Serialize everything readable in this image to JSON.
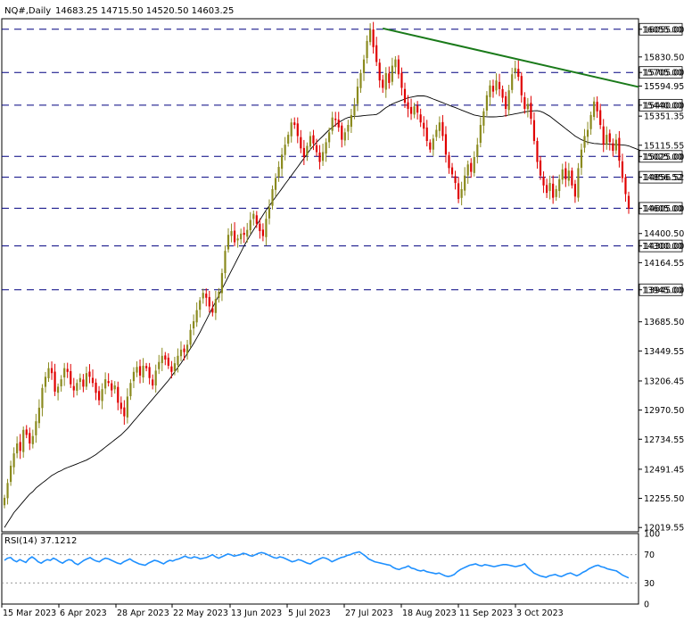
{
  "header": {
    "symbol": "NQ#,Daily",
    "ohlc": "14683.25 14715.50 14520.50 14603.25"
  },
  "rsi": {
    "label": "RSI(14) 37.1212",
    "levels": [
      "100",
      "70",
      "30",
      "0"
    ]
  },
  "colors": {
    "bull": "#8a8a1e",
    "bear": "#e00000",
    "trendline": "#1a7a1a",
    "ma": "#000000",
    "level_line": "#000080",
    "rsi_line": "#1e90ff"
  },
  "chart_data": {
    "type": "candlestick",
    "y_ticks": [
      "16055.00",
      "15830.50",
      "15705.00",
      "15594.95",
      "15440.00",
      "15351.35",
      "15115.55",
      "15025.00",
      "14856.52",
      "14605.00",
      "14400.50",
      "14300.00",
      "14164.55",
      "13945.00",
      "13685.50",
      "13449.55",
      "13206.45",
      "12970.50",
      "12734.55",
      "12491.45",
      "12255.50",
      "12019.55"
    ],
    "x_ticks": [
      "15 Mar 2023",
      "6 Apr 2023",
      "28 Apr 2023",
      "22 May 2023",
      "13 Jun 2023",
      "5 Jul 2023",
      "27 Jul 2023",
      "18 Aug 2023",
      "11 Sep 2023",
      "3 Oct 2023"
    ],
    "levels": [
      16055.0,
      15705.0,
      15440.0,
      15025.0,
      14856.52,
      14605.0,
      14300.0,
      13945.0
    ],
    "level_labels": [
      "16055.00",
      "15705.00",
      "15440.00",
      "15025.00",
      "14856.52",
      "14605.00",
      "14300.00",
      "13945.00"
    ],
    "trendline": {
      "from": {
        "i": 120,
        "price": 16062
      },
      "to": {
        "i": 240,
        "price": 15360
      }
    },
    "closes": [
      12260,
      12380,
      12520,
      12620,
      12700,
      12640,
      12810,
      12770,
      12700,
      12760,
      12880,
      12990,
      13150,
      13240,
      13310,
      13270,
      13120,
      13160,
      13220,
      13310,
      13280,
      13180,
      13130,
      13190,
      13230,
      13160,
      13270,
      13240,
      13190,
      13110,
      13050,
      13140,
      13220,
      13190,
      13130,
      13170,
      13030,
      12980,
      12920,
      13080,
      13190,
      13280,
      13320,
      13250,
      13330,
      13310,
      13230,
      13170,
      13290,
      13360,
      13410,
      13380,
      13330,
      13280,
      13350,
      13410,
      13460,
      13440,
      13500,
      13620,
      13690,
      13780,
      13860,
      13920,
      13880,
      13810,
      13760,
      13870,
      13930,
      14080,
      14260,
      14390,
      14420,
      14330,
      14360,
      14400,
      14390,
      14430,
      14510,
      14560,
      14480,
      14420,
      14380,
      14520,
      14610,
      14760,
      14850,
      14940,
      15040,
      15120,
      15200,
      15300,
      15280,
      15190,
      15090,
      15020,
      15110,
      15190,
      15130,
      15060,
      14980,
      15060,
      15140,
      15220,
      15340,
      15320,
      15260,
      15160,
      15220,
      15280,
      15360,
      15440,
      15590,
      15700,
      15810,
      15960,
      16050,
      15910,
      15790,
      15640,
      15580,
      15700,
      15620,
      15760,
      15810,
      15690,
      15580,
      15460,
      15410,
      15370,
      15430,
      15380,
      15300,
      15250,
      15150,
      15080,
      15170,
      15240,
      15300,
      15190,
      15040,
      14930,
      14880,
      14810,
      14680,
      14760,
      14870,
      14960,
      14900,
      15020,
      15120,
      15280,
      15390,
      15520,
      15600,
      15550,
      15640,
      15570,
      15500,
      15410,
      15560,
      15690,
      15740,
      15670,
      15520,
      15410,
      15450,
      15330,
      15150,
      14980,
      14870,
      14790,
      14730,
      14810,
      14690,
      14760,
      14840,
      14920,
      14840,
      14910,
      14790,
      14700,
      14930,
      15080,
      15190,
      15240,
      15360,
      15470,
      15390,
      15280,
      15120,
      15200,
      15140,
      15070,
      15160,
      14990,
      14850,
      14720,
      14603.25
    ],
    "ma": [
      12020,
      12060,
      12100,
      12140,
      12170,
      12200,
      12230,
      12260,
      12290,
      12310,
      12340,
      12360,
      12380,
      12400,
      12420,
      12440,
      12455,
      12470,
      12480,
      12495,
      12505,
      12515,
      12525,
      12535,
      12545,
      12555,
      12565,
      12580,
      12595,
      12610,
      12630,
      12650,
      12670,
      12690,
      12710,
      12730,
      12750,
      12770,
      12795,
      12820,
      12850,
      12880,
      12910,
      12940,
      12970,
      13000,
      13030,
      13060,
      13090,
      13120,
      13150,
      13180,
      13210,
      13245,
      13280,
      13315,
      13350,
      13390,
      13430,
      13470,
      13510,
      13555,
      13600,
      13650,
      13700,
      13750,
      13800,
      13850,
      13900,
      13950,
      14000,
      14050,
      14100,
      14150,
      14200,
      14250,
      14300,
      14345,
      14390,
      14430,
      14470,
      14510,
      14550,
      14590,
      14625,
      14660,
      14695,
      14730,
      14765,
      14800,
      14835,
      14870,
      14905,
      14940,
      14975,
      15010,
      15045,
      15080,
      15110,
      15140,
      15165,
      15190,
      15215,
      15240,
      15260,
      15280,
      15300,
      15315,
      15330,
      15340,
      15345,
      15350,
      15350,
      15352,
      15355,
      15358,
      15360,
      15362,
      15365,
      15380,
      15400,
      15420,
      15435,
      15450,
      15460,
      15470,
      15480,
      15490,
      15500,
      15505,
      15510,
      15515,
      15515,
      15515,
      15510,
      15500,
      15490,
      15480,
      15470,
      15460,
      15450,
      15440,
      15430,
      15420,
      15410,
      15400,
      15390,
      15380,
      15370,
      15360,
      15355,
      15350,
      15348,
      15346,
      15345,
      15345,
      15346,
      15348,
      15350,
      15355,
      15360,
      15365,
      15370,
      15375,
      15380,
      15385,
      15390,
      15392,
      15394,
      15395,
      15390,
      15380,
      15365,
      15350,
      15330,
      15310,
      15290,
      15270,
      15250,
      15230,
      15210,
      15190,
      15175,
      15160,
      15150,
      15140,
      15135,
      15130,
      15128,
      15126,
      15125,
      15124,
      15123,
      15122,
      15121,
      15120,
      15118,
      15115,
      15110,
      15100,
      15090,
      15080,
      15070,
      15060,
      15050,
      15040
    ],
    "rsi": [
      62,
      65,
      66,
      62,
      60,
      63,
      61,
      59,
      64,
      67,
      64,
      60,
      58,
      61,
      63,
      62,
      65,
      63,
      60,
      58,
      61,
      63,
      62,
      58,
      56,
      59,
      62,
      64,
      66,
      63,
      61,
      60,
      63,
      65,
      64,
      62,
      60,
      58,
      57,
      60,
      62,
      64,
      61,
      59,
      57,
      56,
      55,
      58,
      60,
      62,
      61,
      59,
      57,
      60,
      62,
      61,
      63,
      64,
      66,
      68,
      66,
      65,
      67,
      66,
      64,
      65,
      66,
      68,
      70,
      67,
      65,
      67,
      69,
      71,
      70,
      68,
      69,
      70,
      72,
      71,
      69,
      68,
      70,
      72,
      73,
      72,
      70,
      68,
      66,
      65,
      67,
      66,
      64,
      62,
      60,
      61,
      63,
      62,
      60,
      58,
      57,
      60,
      62,
      64,
      66,
      65,
      63,
      60,
      62,
      64,
      66,
      67,
      69,
      70,
      72,
      73,
      74,
      71,
      68,
      64,
      62,
      60,
      59,
      58,
      57,
      56,
      55,
      52,
      50,
      49,
      51,
      52,
      54,
      51,
      50,
      48,
      47,
      48,
      46,
      45,
      44,
      43,
      44,
      42,
      40,
      39,
      40,
      42,
      46,
      49,
      51,
      53,
      55,
      56,
      57,
      55,
      54,
      56,
      55,
      54,
      53,
      54,
      55,
      56,
      56,
      55,
      54,
      53,
      54,
      55,
      57,
      52,
      48,
      44,
      42,
      40,
      39,
      38,
      40,
      41,
      42,
      40,
      39,
      41,
      43,
      44,
      42,
      40,
      42,
      45,
      47,
      50,
      52,
      54,
      55,
      53,
      52,
      50,
      49,
      48,
      47,
      44,
      41,
      39,
      37.12
    ]
  }
}
